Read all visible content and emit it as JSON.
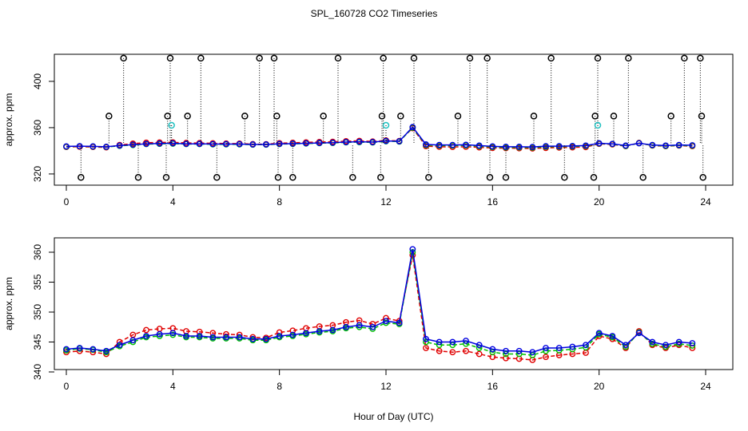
{
  "chart_data": [
    {
      "type": "line",
      "title": "SPL_160728  CO2 Timeseries",
      "ylabel": "approx. ppm",
      "x": [
        0,
        0.5,
        1,
        1.5,
        2,
        2.5,
        3,
        3.5,
        4,
        4.5,
        5,
        5.5,
        6,
        6.5,
        7,
        7.5,
        8,
        8.5,
        9,
        9.5,
        10,
        10.5,
        11,
        11.5,
        12,
        12.5,
        13,
        13.5,
        14,
        14.5,
        15,
        15.5,
        16,
        16.5,
        17,
        17.5,
        18,
        18.5,
        19,
        19.5,
        20,
        20.5,
        21,
        21.5,
        22,
        22.5,
        23,
        23.5
      ],
      "series": [
        {
          "color": "#e00000",
          "values": [
            343.3,
            343.5,
            343.3,
            343,
            345,
            346.2,
            347,
            347.2,
            347.3,
            346.8,
            346.7,
            346.5,
            346.3,
            346.2,
            345.8,
            345.7,
            346.6,
            346.9,
            347.3,
            347.6,
            347.8,
            348.3,
            348.6,
            348,
            349,
            348.5,
            359.5,
            344,
            343.5,
            343.3,
            343.5,
            343,
            342.5,
            342.3,
            342.2,
            342,
            342.5,
            342.8,
            343,
            343.2,
            346,
            345.5,
            344,
            346.8,
            344.5,
            344,
            344.5,
            344
          ]
        },
        {
          "color": "#00c000",
          "values": [
            343.6,
            343.9,
            343.7,
            343.3,
            344.3,
            345,
            345.8,
            346,
            346.2,
            345.8,
            345.8,
            345.6,
            345.6,
            345.6,
            345.3,
            345.3,
            345.8,
            346,
            346.3,
            346.6,
            346.8,
            347.3,
            347.5,
            347.2,
            348.2,
            348,
            360,
            345,
            344.5,
            344.5,
            344.7,
            344,
            343.3,
            343,
            343,
            342.8,
            343.5,
            343.6,
            343.8,
            344.1,
            346.3,
            345.8,
            344.2,
            346.6,
            344.7,
            344.2,
            344.7,
            344.4
          ]
        },
        {
          "color": "#0000e0",
          "values": [
            343.8,
            344,
            343.8,
            343.5,
            344.5,
            345.3,
            346,
            346.3,
            346.5,
            346,
            346,
            345.8,
            345.8,
            345.8,
            345.5,
            345.5,
            346,
            346.2,
            346.5,
            346.8,
            347,
            347.5,
            347.8,
            347.5,
            348.5,
            348.2,
            360.5,
            345.5,
            345,
            345,
            345.2,
            344.5,
            343.8,
            343.5,
            343.5,
            343.3,
            344,
            344,
            344.2,
            344.5,
            346.5,
            346,
            344.5,
            346.5,
            345,
            344.5,
            345,
            344.8
          ]
        },
        {
          "color": "#000000",
          "droplines": true,
          "x": [
            2.15,
            3.9,
            5.05,
            7.25,
            7.8,
            10.2,
            11.9,
            13.05,
            15.15,
            15.8,
            18.2,
            19.95,
            21.1,
            23.2,
            23.8,
            1.6,
            3.8,
            4.55,
            6.7,
            7.9,
            9.65,
            11.85,
            12.55,
            14.7,
            17.55,
            19.85,
            20.55,
            22.7,
            23.85,
            0.55,
            2.7,
            3.75,
            5.65,
            7.95,
            8.5,
            10.75,
            11.8,
            13.6,
            15.9,
            16.5,
            18.7,
            19.8,
            21.65,
            23.9
          ],
          "values": [
            420,
            420,
            420,
            420,
            420,
            420,
            420,
            420,
            420,
            420,
            420,
            420,
            420,
            420,
            420,
            370,
            370,
            370,
            370,
            370,
            370,
            370,
            370,
            370,
            370,
            370,
            370,
            370,
            370,
            317,
            317,
            317,
            317,
            317,
            317,
            317,
            317,
            317,
            317,
            317,
            317,
            317,
            317,
            317
          ]
        },
        {
          "color": "#20c0c0",
          "droplines": true,
          "x": [
            3.95,
            12.0,
            19.95
          ],
          "values": [
            362,
            362,
            362
          ]
        }
      ],
      "xlim": [
        -0.45,
        25.02
      ],
      "ylim": [
        310.3,
        423.4
      ],
      "xticks": [
        0,
        4,
        8,
        12,
        16,
        20,
        24
      ],
      "yticks": [
        320,
        360,
        400
      ]
    },
    {
      "type": "line",
      "ylabel": "approx. ppm",
      "xlabel": "Hour of Day (UTC)",
      "x": [
        0,
        0.5,
        1,
        1.5,
        2,
        2.5,
        3,
        3.5,
        4,
        4.5,
        5,
        5.5,
        6,
        6.5,
        7,
        7.5,
        8,
        8.5,
        9,
        9.5,
        10,
        10.5,
        11,
        11.5,
        12,
        12.5,
        13,
        13.5,
        14,
        14.5,
        15,
        15.5,
        16,
        16.5,
        17,
        17.5,
        18,
        18.5,
        19,
        19.5,
        20,
        20.5,
        21,
        21.5,
        22,
        22.5,
        23,
        23.5
      ],
      "series": [
        {
          "color": "#e00000",
          "values": [
            343.3,
            343.5,
            343.3,
            343,
            345,
            346.2,
            347,
            347.2,
            347.3,
            346.8,
            346.7,
            346.5,
            346.3,
            346.2,
            345.8,
            345.7,
            346.6,
            346.9,
            347.3,
            347.6,
            347.8,
            348.3,
            348.6,
            348,
            349,
            348.5,
            359.5,
            344,
            343.5,
            343.3,
            343.5,
            343,
            342.5,
            342.3,
            342.2,
            342,
            342.5,
            342.8,
            343,
            343.2,
            346,
            345.5,
            344,
            346.8,
            344.5,
            344,
            344.5,
            344
          ]
        },
        {
          "color": "#00c000",
          "values": [
            343.6,
            343.9,
            343.7,
            343.3,
            344.3,
            345,
            345.8,
            346,
            346.2,
            345.8,
            345.8,
            345.6,
            345.6,
            345.6,
            345.3,
            345.3,
            345.8,
            346,
            346.3,
            346.6,
            346.8,
            347.3,
            347.5,
            347.2,
            348.2,
            348,
            360,
            345,
            344.5,
            344.5,
            344.7,
            344,
            343.3,
            343,
            343,
            342.8,
            343.5,
            343.6,
            343.8,
            344.1,
            346.3,
            345.8,
            344.2,
            346.6,
            344.7,
            344.2,
            344.7,
            344.4
          ]
        },
        {
          "color": "#0000e0",
          "values": [
            343.8,
            344,
            343.8,
            343.5,
            344.5,
            345.3,
            346,
            346.3,
            346.5,
            346,
            346,
            345.8,
            345.8,
            345.8,
            345.5,
            345.5,
            346,
            346.2,
            346.5,
            346.8,
            347,
            347.5,
            347.8,
            347.5,
            348.5,
            348.2,
            360.5,
            345.5,
            345,
            345,
            345.2,
            344.5,
            343.8,
            343.5,
            343.5,
            343.3,
            344,
            344,
            344.2,
            344.5,
            346.5,
            346,
            344.5,
            346.5,
            345,
            344.5,
            345,
            344.8
          ]
        }
      ],
      "xlim": [
        -0.45,
        25.02
      ],
      "ylim": [
        340.4,
        362.4
      ],
      "xticks": [
        0,
        4,
        8,
        12,
        16,
        20,
        24
      ],
      "yticks": [
        340,
        345,
        350,
        355,
        360
      ]
    }
  ]
}
